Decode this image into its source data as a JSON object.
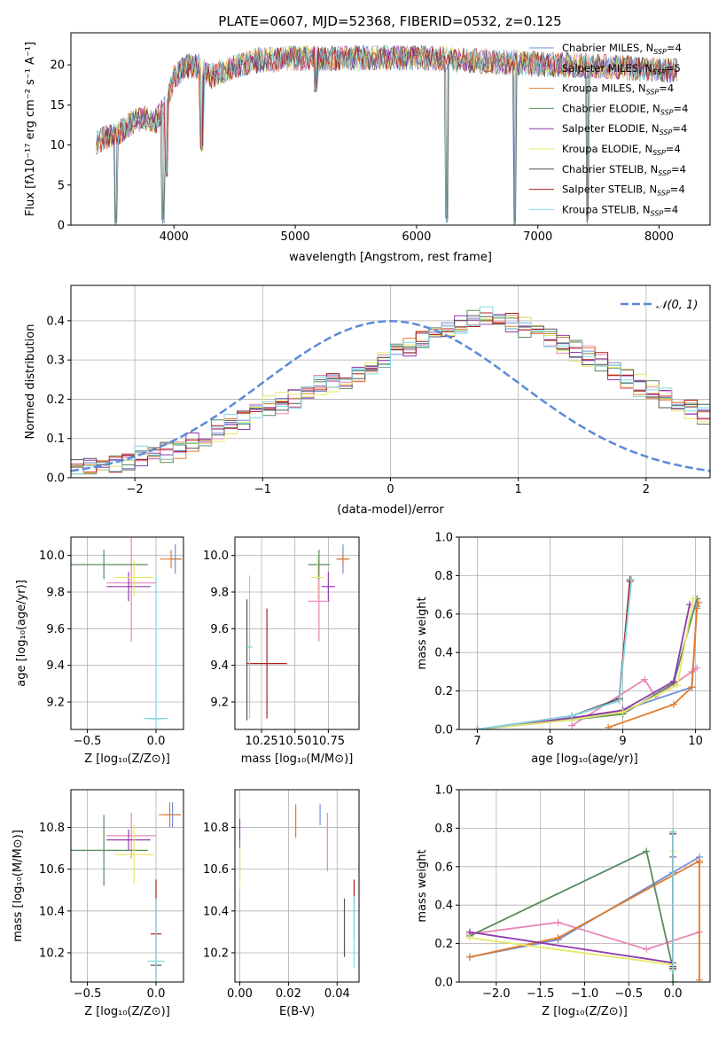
{
  "colors": {
    "Chabrier MILES": "#6f8fdc",
    "Salpeter MILES": "#e887b9",
    "Kroupa MILES": "#e07b2c",
    "Chabrier ELODIE": "#5a8a5e",
    "Salpeter ELODIE": "#8e3aab",
    "Kroupa ELODIE": "#e8e86a",
    "Chabrier STELIB": "#555555",
    "Salpeter STELIB": "#b01c1c",
    "Kroupa STELIB": "#7fd9e3",
    "gaussian": "#5b8bd6",
    "grid": "#b0b0b0"
  },
  "chart_data": [
    {
      "id": "spectrum",
      "type": "line",
      "title": "PLATE=0607, MJD=52368, FIBERID=0532, z=0.125",
      "xlabel": "wavelength [Angstrom, rest frame]",
      "ylabel": "Flux [fλ10⁻¹⁷ erg cm⁻² s⁻¹ A⁻¹]",
      "xlim": [
        3150,
        8420
      ],
      "ylim": [
        0,
        24
      ],
      "xticks": [
        "4000",
        "5000",
        "6000",
        "7000",
        "8000"
      ],
      "yticks": [
        "0",
        "5",
        "10",
        "15",
        "20"
      ],
      "grid": false,
      "legend_position": "right",
      "legend": [
        {
          "name": "Chabrier MILES",
          "nssp": "4"
        },
        {
          "name": "Salpeter MILES",
          "nssp": "5"
        },
        {
          "name": "Kroupa MILES",
          "nssp": "4"
        },
        {
          "name": "Chabrier ELODIE",
          "nssp": "4"
        },
        {
          "name": "Salpeter ELODIE",
          "nssp": "4"
        },
        {
          "name": "Kroupa ELODIE",
          "nssp": "4"
        },
        {
          "name": "Chabrier STELIB",
          "nssp": "4"
        },
        {
          "name": "Salpeter STELIB",
          "nssp": "4"
        },
        {
          "name": "Kroupa STELIB",
          "nssp": "4"
        }
      ],
      "continuum": {
        "x": [
          3350,
          3450,
          3550,
          3650,
          3750,
          3850,
          3950,
          4000,
          4100,
          4200,
          4300,
          4500,
          4700,
          5000,
          5300,
          5600,
          6000,
          6500,
          7000,
          7500,
          8000,
          8150
        ],
        "y": [
          10.3,
          11.0,
          11.6,
          12.8,
          13.4,
          13.0,
          15.5,
          18.5,
          19.8,
          19.8,
          18.5,
          19.8,
          20.6,
          20.8,
          20.8,
          20.9,
          20.9,
          20.5,
          20.1,
          19.8,
          19.4,
          19.3
        ]
      },
      "dips": [
        {
          "x": 3520,
          "y": 0
        },
        {
          "x": 3910,
          "y": 0
        },
        {
          "x": 3933,
          "y": 6
        },
        {
          "x": 4230,
          "y": 9
        },
        {
          "x": 5170,
          "y": 16.5
        },
        {
          "x": 6250,
          "y": 0
        },
        {
          "x": 6810,
          "y": 0
        },
        {
          "x": 7410,
          "y": 0
        }
      ]
    },
    {
      "id": "residual-hist",
      "type": "bar",
      "xlabel": "(data-model)/error",
      "ylabel": "Normed distribution",
      "xlim": [
        -2.5,
        2.5
      ],
      "ylim": [
        0,
        0.49
      ],
      "xticks": [
        "−2",
        "−1",
        "0",
        "1",
        "2"
      ],
      "yticks": [
        "0.0",
        "0.1",
        "0.2",
        "0.3",
        "0.4"
      ],
      "grid": true,
      "legend_position": "top-right",
      "legend_label": "𝒩(0, 1)",
      "bin_edges_start": -2.5,
      "bin_width": 0.1,
      "base_values": [
        0.022,
        0.026,
        0.032,
        0.038,
        0.045,
        0.052,
        0.058,
        0.065,
        0.075,
        0.09,
        0.105,
        0.12,
        0.135,
        0.148,
        0.165,
        0.18,
        0.19,
        0.2,
        0.215,
        0.235,
        0.245,
        0.255,
        0.265,
        0.28,
        0.3,
        0.315,
        0.33,
        0.35,
        0.37,
        0.375,
        0.39,
        0.4,
        0.41,
        0.405,
        0.395,
        0.385,
        0.37,
        0.36,
        0.34,
        0.325,
        0.31,
        0.295,
        0.27,
        0.25,
        0.235,
        0.22,
        0.205,
        0.19,
        0.175,
        0.16,
        0.145,
        0.125,
        0.115,
        0.1,
        0.088,
        0.075,
        0.065,
        0.058,
        0.05,
        0.045,
        0.04,
        0.035,
        0.032,
        0.03,
        0.028,
        0.025,
        0.022,
        0.02,
        0.02,
        0.02
      ]
    },
    {
      "id": "age-vs-z",
      "type": "scatter",
      "xlabel": "Z [log₁₀(Z/Z⊙)]",
      "ylabel": "age  [log₁₀(age/yr)]",
      "xlim": [
        -0.62,
        0.2
      ],
      "ylim": [
        9.05,
        10.1
      ],
      "xticks": [
        "−0.5",
        "0.0"
      ],
      "xtick_values": [
        -0.5,
        0.0
      ],
      "yticks": [
        "9.2",
        "9.4",
        "9.6",
        "9.8",
        "10.0"
      ],
      "ytick_values": [
        9.2,
        9.4,
        9.6,
        9.8,
        10.0
      ],
      "grid": true,
      "points": [
        {
          "model": "Chabrier MILES",
          "x": 0.14,
          "xerr": 0.04,
          "y": 9.98,
          "yerr": 0.08
        },
        {
          "model": "Salpeter MILES",
          "x": -0.18,
          "xerr": 0.18,
          "y": 9.85,
          "yerr": 0.32
        },
        {
          "model": "Kroupa MILES",
          "x": 0.11,
          "xerr": 0.08,
          "y": 9.98,
          "yerr": 0.05
        },
        {
          "model": "Chabrier ELODIE",
          "x": -0.38,
          "xerr": 0.32,
          "y": 9.95,
          "yerr": 0.08
        },
        {
          "model": "Salpeter ELODIE",
          "x": -0.2,
          "xerr": 0.16,
          "y": 9.83,
          "yerr": 0.08
        },
        {
          "model": "Kroupa ELODIE",
          "x": -0.16,
          "xerr": 0.14,
          "y": 9.88,
          "yerr": 0.1
        },
        {
          "model": "Chabrier STELIB",
          "x": 0.0,
          "xerr": 0.04,
          "y": 9.11,
          "yerr": 0.0
        },
        {
          "model": "Salpeter STELIB",
          "x": 0.0,
          "xerr": 0.04,
          "y": 9.11,
          "yerr": 0.0
        },
        {
          "model": "Kroupa STELIB",
          "x": 0.0,
          "xerr": 0.09,
          "y": 9.11,
          "yerr": 0.78
        }
      ]
    },
    {
      "id": "age-vs-mass",
      "type": "scatter",
      "xlabel": "mass [log₁₀(M/M⊙)]",
      "ylabel": "",
      "xlim": [
        10.05,
        10.98
      ],
      "ylim": [
        9.05,
        10.1
      ],
      "xticks": [
        "10.25",
        "10.50",
        "10.75"
      ],
      "xtick_values": [
        10.25,
        10.5,
        10.75
      ],
      "yticks": [
        "9.2",
        "9.4",
        "9.6",
        "9.8",
        "10.0"
      ],
      "ytick_values": [
        9.2,
        9.4,
        9.6,
        9.8,
        10.0
      ],
      "grid": true,
      "points": [
        {
          "model": "Chabrier MILES",
          "x": 10.86,
          "xerr": 0.04,
          "y": 9.98,
          "yerr": 0.08
        },
        {
          "model": "Salpeter MILES",
          "x": 10.68,
          "xerr": 0.08,
          "y": 9.75,
          "yerr": 0.22
        },
        {
          "model": "Kroupa MILES",
          "x": 10.86,
          "xerr": 0.05,
          "y": 9.98,
          "yerr": 0.03
        },
        {
          "model": "Chabrier ELODIE",
          "x": 10.68,
          "xerr": 0.08,
          "y": 9.95,
          "yerr": 0.08
        },
        {
          "model": "Salpeter ELODIE",
          "x": 10.75,
          "xerr": 0.05,
          "y": 9.83,
          "yerr": 0.08
        },
        {
          "model": "Kroupa ELODIE",
          "x": 10.67,
          "xerr": 0.05,
          "y": 9.88,
          "yerr": 0.12
        },
        {
          "model": "Chabrier STELIB",
          "x": 10.14,
          "xerr": 0.0,
          "y": 9.43,
          "yerr": 0.33
        },
        {
          "model": "Salpeter STELIB",
          "x": 10.29,
          "xerr": 0.15,
          "y": 9.41,
          "yerr": 0.3
        },
        {
          "model": "Kroupa STELIB",
          "x": 10.16,
          "xerr": 0.02,
          "y": 9.5,
          "yerr": 0.39
        }
      ]
    },
    {
      "id": "mass-weight-vs-age",
      "type": "line",
      "xlabel": "age  [log₁₀(age/yr)]",
      "ylabel": "mass weight",
      "xlim": [
        6.75,
        10.2
      ],
      "ylim": [
        0,
        1
      ],
      "xticks": [
        "7",
        "8",
        "9",
        "10"
      ],
      "xtick_values": [
        7,
        8,
        9,
        10
      ],
      "yticks": [
        "0.0",
        "0.2",
        "0.4",
        "0.6",
        "0.8",
        "1.0"
      ],
      "ytick_values": [
        0,
        0.2,
        0.4,
        0.6,
        0.8,
        1.0
      ],
      "grid": true,
      "series": [
        {
          "model": "Chabrier MILES",
          "x": [
            7.0,
            8.3,
            9.0,
            9.95,
            10.02
          ],
          "y": [
            0.0,
            0.05,
            0.1,
            0.22,
            0.64
          ]
        },
        {
          "model": "Salpeter MILES",
          "x": [
            8.3,
            9.3,
            9.45,
            9.95,
            10.02
          ],
          "y": [
            0.02,
            0.26,
            0.17,
            0.3,
            0.32
          ]
        },
        {
          "model": "Kroupa MILES",
          "x": [
            8.8,
            9.7,
            9.95,
            10.02,
            10.04
          ],
          "y": [
            0.01,
            0.13,
            0.22,
            0.63,
            0.66
          ]
        },
        {
          "model": "Chabrier ELODIE",
          "x": [
            7.0,
            8.3,
            9.0,
            9.7,
            10.02
          ],
          "y": [
            0.0,
            0.05,
            0.08,
            0.24,
            0.68
          ]
        },
        {
          "model": "Salpeter ELODIE",
          "x": [
            7.0,
            8.3,
            9.0,
            9.7,
            9.92
          ],
          "y": [
            0.0,
            0.06,
            0.1,
            0.25,
            0.65
          ]
        },
        {
          "model": "Kroupa ELODIE",
          "x": [
            7.0,
            8.3,
            9.0,
            9.75,
            9.97
          ],
          "y": [
            0.0,
            0.05,
            0.09,
            0.23,
            0.68
          ]
        },
        {
          "model": "Chabrier STELIB",
          "x": [
            7.0,
            8.3,
            8.95,
            9.1
          ],
          "y": [
            0.0,
            0.07,
            0.16,
            0.78
          ]
        },
        {
          "model": "Salpeter STELIB",
          "x": [
            7.0,
            8.3,
            8.95,
            9.1
          ],
          "y": [
            0.0,
            0.07,
            0.15,
            0.77
          ]
        },
        {
          "model": "Kroupa STELIB",
          "x": [
            7.0,
            8.3,
            8.95,
            9.12
          ],
          "y": [
            0.0,
            0.07,
            0.15,
            0.78
          ]
        }
      ]
    },
    {
      "id": "mass-vs-z",
      "type": "scatter",
      "xlabel": "Z [log₁₀(Z/Z⊙)]",
      "ylabel": "mass [log₁₀(M/M⊙)]",
      "xlim": [
        -0.62,
        0.2
      ],
      "ylim": [
        10.06,
        10.98
      ],
      "xticks": [
        "−0.5",
        "0.0"
      ],
      "xtick_values": [
        -0.5,
        0.0
      ],
      "yticks": [
        "10.2",
        "10.4",
        "10.6",
        "10.8"
      ],
      "ytick_values": [
        10.2,
        10.4,
        10.6,
        10.8
      ],
      "grid": true,
      "points": [
        {
          "model": "Chabrier MILES",
          "x": 0.12,
          "xerr": 0.06,
          "y": 10.86,
          "yerr": 0.06
        },
        {
          "model": "Salpeter MILES",
          "x": -0.18,
          "xerr": 0.18,
          "y": 10.76,
          "yerr": 0.11
        },
        {
          "model": "Kroupa MILES",
          "x": 0.1,
          "xerr": 0.08,
          "y": 10.86,
          "yerr": 0.06
        },
        {
          "model": "Chabrier ELODIE",
          "x": -0.38,
          "xerr": 0.32,
          "y": 10.69,
          "yerr": 0.17
        },
        {
          "model": "Salpeter ELODIE",
          "x": -0.2,
          "xerr": 0.16,
          "y": 10.74,
          "yerr": 0.05
        },
        {
          "model": "Kroupa ELODIE",
          "x": -0.16,
          "xerr": 0.14,
          "y": 10.67,
          "yerr": 0.14
        },
        {
          "model": "Chabrier STELIB",
          "x": 0.0,
          "xerr": 0.04,
          "y": 10.14,
          "yerr": 0.0
        },
        {
          "model": "Salpeter STELIB",
          "x": 0.0,
          "xerr": 0.04,
          "y": 10.29,
          "yerr": 0.26
        },
        {
          "model": "Kroupa STELIB",
          "x": 0.0,
          "xerr": 0.06,
          "y": 10.16,
          "yerr": 0.3
        }
      ]
    },
    {
      "id": "mass-vs-ebv",
      "type": "scatter",
      "xlabel": "E(B-V)",
      "ylabel": "",
      "xlim": [
        -0.002,
        0.049
      ],
      "ylim": [
        10.06,
        10.98
      ],
      "xticks": [
        "0.00",
        "0.02",
        "0.04"
      ],
      "xtick_values": [
        0.0,
        0.02,
        0.04
      ],
      "yticks": [
        "10.2",
        "10.4",
        "10.6",
        "10.8"
      ],
      "ytick_values": [
        10.2,
        10.4,
        10.6,
        10.8
      ],
      "grid": true,
      "points": [
        {
          "model": "Chabrier MILES",
          "x": 0.033,
          "xerr": 0.0,
          "y": 10.86,
          "yerr": 0.05
        },
        {
          "model": "Salpeter MILES",
          "x": 0.036,
          "xerr": 0.0,
          "y": 10.73,
          "yerr": 0.14
        },
        {
          "model": "Kroupa MILES",
          "x": 0.023,
          "xerr": 0.0,
          "y": 10.83,
          "yerr": 0.08
        },
        {
          "model": "Chabrier ELODIE",
          "x": 0.0,
          "xerr": 0.0,
          "y": 10.65,
          "yerr": 0.1
        },
        {
          "model": "Salpeter ELODIE",
          "x": 0.0,
          "xerr": 0.0,
          "y": 10.79,
          "yerr": 0.05
        },
        {
          "model": "Kroupa ELODIE",
          "x": 0.0,
          "xerr": 0.0,
          "y": 10.6,
          "yerr": 0.1
        },
        {
          "model": "Chabrier STELIB",
          "x": 0.043,
          "xerr": 0.0,
          "y": 10.32,
          "yerr": 0.14
        },
        {
          "model": "Salpeter STELIB",
          "x": 0.047,
          "xerr": 0.0,
          "y": 10.41,
          "yerr": 0.14
        },
        {
          "model": "Kroupa STELIB",
          "x": 0.047,
          "xerr": 0.0,
          "y": 10.3,
          "yerr": 0.17
        }
      ]
    },
    {
      "id": "mass-weight-vs-z",
      "type": "line",
      "xlabel": "Z [log₁₀(Z/Z⊙)]",
      "ylabel": "mass weight",
      "xlim": [
        -2.42,
        0.42
      ],
      "ylim": [
        0,
        1
      ],
      "xticks": [
        "−2.0",
        "−1.5",
        "−1.0",
        "−0.5",
        "0.0"
      ],
      "xtick_values": [
        -2.0,
        -1.5,
        -1.0,
        -0.5,
        0.0
      ],
      "yticks": [
        "0.0",
        "0.2",
        "0.4",
        "0.6",
        "0.8",
        "1.0"
      ],
      "ytick_values": [
        0,
        0.2,
        0.4,
        0.6,
        0.8,
        1.0
      ],
      "grid": true,
      "series": [
        {
          "model": "Chabrier MILES",
          "x": [
            -2.3,
            -1.3,
            0.0,
            0.3
          ],
          "y": [
            0.13,
            0.22,
            0.57,
            0.65
          ]
        },
        {
          "model": "Salpeter MILES",
          "x": [
            -2.3,
            -1.3,
            -0.3,
            0.3
          ],
          "y": [
            0.25,
            0.31,
            0.17,
            0.26
          ]
        },
        {
          "model": "Kroupa MILES",
          "x": [
            -2.3,
            -1.3,
            0.3,
            0.3,
            0.3
          ],
          "y": [
            0.13,
            0.23,
            0.63,
            0.01,
            0.62
          ]
        },
        {
          "model": "Chabrier ELODIE",
          "x": [
            -2.3,
            -0.3,
            0.0,
            0.0
          ],
          "y": [
            0.24,
            0.68,
            0.07,
            0.0
          ]
        },
        {
          "model": "Salpeter ELODIE",
          "x": [
            -2.3,
            0.0,
            0.0
          ],
          "y": [
            0.26,
            0.1,
            0.65
          ]
        },
        {
          "model": "Kroupa ELODIE",
          "x": [
            -2.3,
            0.0,
            0.0
          ],
          "y": [
            0.23,
            0.09,
            0.68
          ]
        },
        {
          "model": "Chabrier STELIB",
          "x": [
            0.0,
            0.0
          ],
          "y": [
            0.08,
            0.78
          ]
        },
        {
          "model": "Salpeter STELIB",
          "x": [
            0.0,
            0.0
          ],
          "y": [
            0.07,
            0.77
          ]
        },
        {
          "model": "Kroupa STELIB",
          "x": [
            0.0,
            0.0
          ],
          "y": [
            0.06,
            0.78
          ]
        }
      ]
    }
  ]
}
